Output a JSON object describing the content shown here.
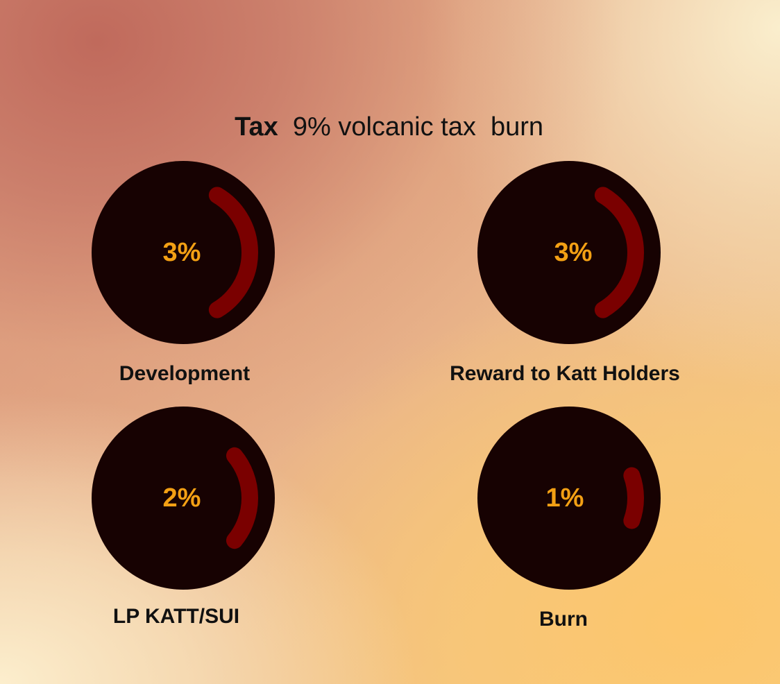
{
  "header": {
    "tax_word": "Tax",
    "tax_rest": "9% volcanic tax  burn"
  },
  "colors": {
    "dial_bg": "#170202",
    "arc": "#7a0000",
    "percent_text": "#f3a014"
  },
  "items": [
    {
      "label": "Development",
      "percent": "3%",
      "arc_fraction": 0.33
    },
    {
      "label": "Reward to Katt Holders",
      "percent": "3%",
      "arc_fraction": 0.33
    },
    {
      "label": "LP KATT/SUI",
      "percent": "2%",
      "arc_fraction": 0.22
    },
    {
      "label": "Burn",
      "percent": "1%",
      "arc_fraction": 0.11
    }
  ]
}
